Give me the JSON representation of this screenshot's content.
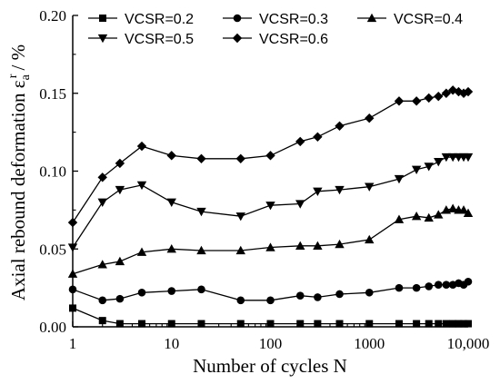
{
  "chart_data": {
    "type": "line",
    "xscale": "log",
    "xlim": [
      1,
      10000
    ],
    "ylim": [
      0,
      0.2
    ],
    "xticks": [
      1,
      10,
      100,
      1000,
      10000
    ],
    "xtick_labels": [
      "1",
      "10",
      "100",
      "1000",
      "10,000"
    ],
    "yticks": [
      0,
      0.05,
      0.1,
      0.15,
      0.2
    ],
    "ytick_labels": [
      "0.00",
      "0.05",
      "0.10",
      "0.15",
      "0.20"
    ],
    "xlabel": "Number of cycles N",
    "ylabel": "Axial rebound deformation εₐʳ / %",
    "ylabel_main": "Axial rebound deformation ε",
    "ylabel_sub": "a",
    "ylabel_sup": "r",
    "ylabel_tail": "/ %",
    "grid": false,
    "legend_position": "top",
    "series": [
      {
        "name": "VCSR=0.2",
        "marker": "square",
        "x": [
          1,
          2,
          3,
          5,
          10,
          20,
          50,
          100,
          200,
          300,
          500,
          1000,
          2000,
          3000,
          4000,
          5000,
          6000,
          7000,
          8000,
          9000,
          10000
        ],
        "y": [
          0.012,
          0.004,
          0.002,
          0.002,
          0.002,
          0.002,
          0.002,
          0.002,
          0.002,
          0.002,
          0.002,
          0.002,
          0.002,
          0.002,
          0.002,
          0.002,
          0.002,
          0.002,
          0.002,
          0.002,
          0.002
        ]
      },
      {
        "name": "VCSR=0.3",
        "marker": "circle",
        "x": [
          1,
          2,
          3,
          5,
          10,
          20,
          50,
          100,
          200,
          300,
          500,
          1000,
          2000,
          3000,
          4000,
          5000,
          6000,
          7000,
          8000,
          9000,
          10000
        ],
        "y": [
          0.024,
          0.017,
          0.018,
          0.022,
          0.023,
          0.024,
          0.017,
          0.017,
          0.02,
          0.019,
          0.021,
          0.022,
          0.025,
          0.025,
          0.026,
          0.027,
          0.027,
          0.027,
          0.028,
          0.027,
          0.029
        ]
      },
      {
        "name": "VCSR=0.4",
        "marker": "triangle-up",
        "x": [
          1,
          2,
          3,
          5,
          10,
          20,
          50,
          100,
          200,
          300,
          500,
          1000,
          2000,
          3000,
          4000,
          5000,
          6000,
          7000,
          8000,
          9000,
          10000
        ],
        "y": [
          0.034,
          0.04,
          0.042,
          0.048,
          0.05,
          0.049,
          0.049,
          0.051,
          0.052,
          0.052,
          0.053,
          0.056,
          0.069,
          0.071,
          0.07,
          0.072,
          0.075,
          0.076,
          0.075,
          0.075,
          0.073
        ]
      },
      {
        "name": "VCSR=0.5",
        "marker": "triangle-down",
        "x": [
          1,
          2,
          3,
          5,
          10,
          20,
          50,
          100,
          200,
          300,
          500,
          1000,
          2000,
          3000,
          4000,
          5000,
          6000,
          7000,
          8000,
          9000,
          10000
        ],
        "y": [
          0.051,
          0.08,
          0.088,
          0.091,
          0.08,
          0.074,
          0.071,
          0.078,
          0.079,
          0.087,
          0.088,
          0.09,
          0.095,
          0.101,
          0.103,
          0.106,
          0.109,
          0.109,
          0.109,
          0.109,
          0.109
        ]
      },
      {
        "name": "VCSR=0.6",
        "marker": "diamond",
        "x": [
          1,
          2,
          3,
          5,
          10,
          20,
          50,
          100,
          200,
          300,
          500,
          1000,
          2000,
          3000,
          4000,
          5000,
          6000,
          7000,
          8000,
          9000,
          10000
        ],
        "y": [
          0.067,
          0.096,
          0.105,
          0.116,
          0.11,
          0.108,
          0.108,
          0.11,
          0.119,
          0.122,
          0.129,
          0.134,
          0.145,
          0.145,
          0.147,
          0.148,
          0.15,
          0.152,
          0.151,
          0.15,
          0.151
        ]
      }
    ]
  }
}
